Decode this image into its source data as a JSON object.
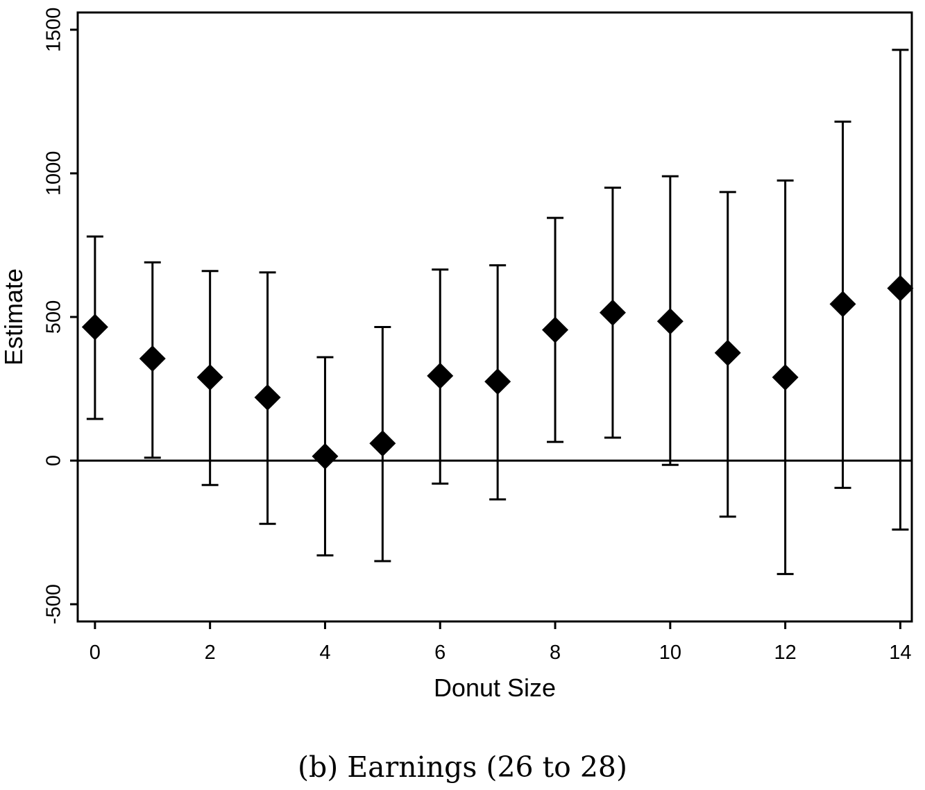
{
  "caption": "(b) Earnings (26 to 28)",
  "chart_data": {
    "type": "scatter",
    "subtype": "point-estimates-with-confidence-intervals",
    "xlabel": "Donut Size",
    "ylabel": "Estimate",
    "xlim": [
      -0.3,
      14.2
    ],
    "ylim": [
      -560,
      1560
    ],
    "xticks": [
      0,
      2,
      4,
      6,
      8,
      10,
      12,
      14
    ],
    "xtick_labels": [
      "0",
      "2",
      "4",
      "6",
      "8",
      "10",
      "12",
      "14"
    ],
    "yticks": [
      -500,
      0,
      500,
      1000,
      1500
    ],
    "ytick_labels": [
      "-500",
      "0",
      "500",
      "1000",
      "1500"
    ],
    "reference_line": 0,
    "grid": false,
    "legend": "none",
    "marker": "diamond",
    "marker_color": "#000000",
    "series": [
      {
        "x": [
          0,
          1,
          2,
          3,
          4,
          5,
          6,
          7,
          8,
          9,
          10,
          11,
          12,
          13,
          14
        ],
        "estimate": [
          465,
          355,
          290,
          220,
          15,
          60,
          295,
          275,
          455,
          515,
          485,
          375,
          290,
          545,
          600
        ],
        "ci_low": [
          145,
          10,
          -85,
          -220,
          -330,
          -350,
          -80,
          -135,
          65,
          80,
          -15,
          -195,
          -395,
          -95,
          -240
        ],
        "ci_high": [
          780,
          690,
          660,
          655,
          360,
          465,
          665,
          680,
          845,
          950,
          990,
          935,
          975,
          1180,
          1430
        ]
      }
    ]
  }
}
